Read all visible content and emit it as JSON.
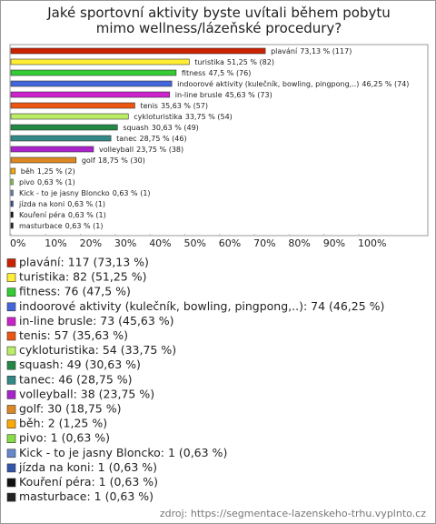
{
  "chart_data": {
    "type": "bar",
    "orientation": "horizontal",
    "title": "Jaké sportovní aktivity byste uvítali během pobytu mimo wellness/lázeňské procedury?",
    "categories": [
      "plavání",
      "turistika",
      "fitness",
      "indoorové aktivity (kulečník, bowling, pingpong,..)",
      "in-line brusle",
      "tenis",
      "cykloturistika",
      "squash",
      "tanec",
      "volleyball",
      "golf",
      "běh",
      "pivo",
      "Kick - to je jasny Bloncko",
      "jízda na koni",
      "Kouření péra",
      "masturbace"
    ],
    "values": [
      73.13,
      51.25,
      47.5,
      46.25,
      45.63,
      35.63,
      33.75,
      30.63,
      28.75,
      23.75,
      18.75,
      1.25,
      0.63,
      0.63,
      0.63,
      0.63,
      0.63
    ],
    "value_labels": [
      "73,13 % (117)",
      "51,25 % (82)",
      "47,5 % (76)",
      "46,25 % (74)",
      "45,63 % (73)",
      "35,63 % (57)",
      "33,75 % (54)",
      "30,63 % (49)",
      "28,75 % (46)",
      "23,75 % (38)",
      "18,75 % (30)",
      "1,25 % (2)",
      "0,63 % (1)",
      "0,63 % (1)",
      "0,63 % (1)",
      "0,63 % (1)",
      "0,63 % (1)"
    ],
    "legend_labels": [
      "plavání: 117 (73,13 %)",
      "turistika: 82 (51,25 %)",
      "fitness: 76 (47,5 %)",
      "indoorové aktivity (kulečník, bowling, pingpong,..): 74 (46,25 %)",
      "in-line brusle: 73 (45,63 %)",
      "tenis: 57 (35,63 %)",
      "cykloturistika: 54 (33,75 %)",
      "squash: 49 (30,63 %)",
      "tanec: 46 (28,75 %)",
      "volleyball: 38 (23,75 %)",
      "golf: 30 (18,75 %)",
      "běh: 2 (1,25 %)",
      "pivo: 1 (0,63 %)",
      "Kick - to je jasny Bloncko: 1 (0,63 %)",
      "jízda na koni: 1 (0,63 %)",
      "Kouření péra: 1 (0,63 %)",
      "masturbace: 1 (0,63 %)"
    ],
    "colors": [
      "#cc2200",
      "#ffee33",
      "#33cc33",
      "#4466dd",
      "#cc22cc",
      "#ee5511",
      "#bbee66",
      "#228844",
      "#338888",
      "#aa22cc",
      "#dd8822",
      "#ffaa00",
      "#88dd44",
      "#6688cc",
      "#3355aa",
      "#111111",
      "#222222"
    ],
    "xlim": [
      0,
      100
    ],
    "xticks": [
      {
        "value": 0,
        "label": "0%"
      },
      {
        "value": 10,
        "label": "10%"
      },
      {
        "value": 20,
        "label": "20%"
      },
      {
        "value": 30,
        "label": "30%"
      },
      {
        "value": 40,
        "label": "40%"
      },
      {
        "value": 50,
        "label": "50%"
      },
      {
        "value": 60,
        "label": "60%"
      },
      {
        "value": 70,
        "label": "70%"
      },
      {
        "value": 80,
        "label": "80%"
      },
      {
        "value": 90,
        "label": "90%"
      },
      {
        "value": 100,
        "label": "100%"
      }
    ],
    "grid": false,
    "source": "zdroj: https://segmentace-lazenskeho-trhu.vyplnto.cz"
  }
}
